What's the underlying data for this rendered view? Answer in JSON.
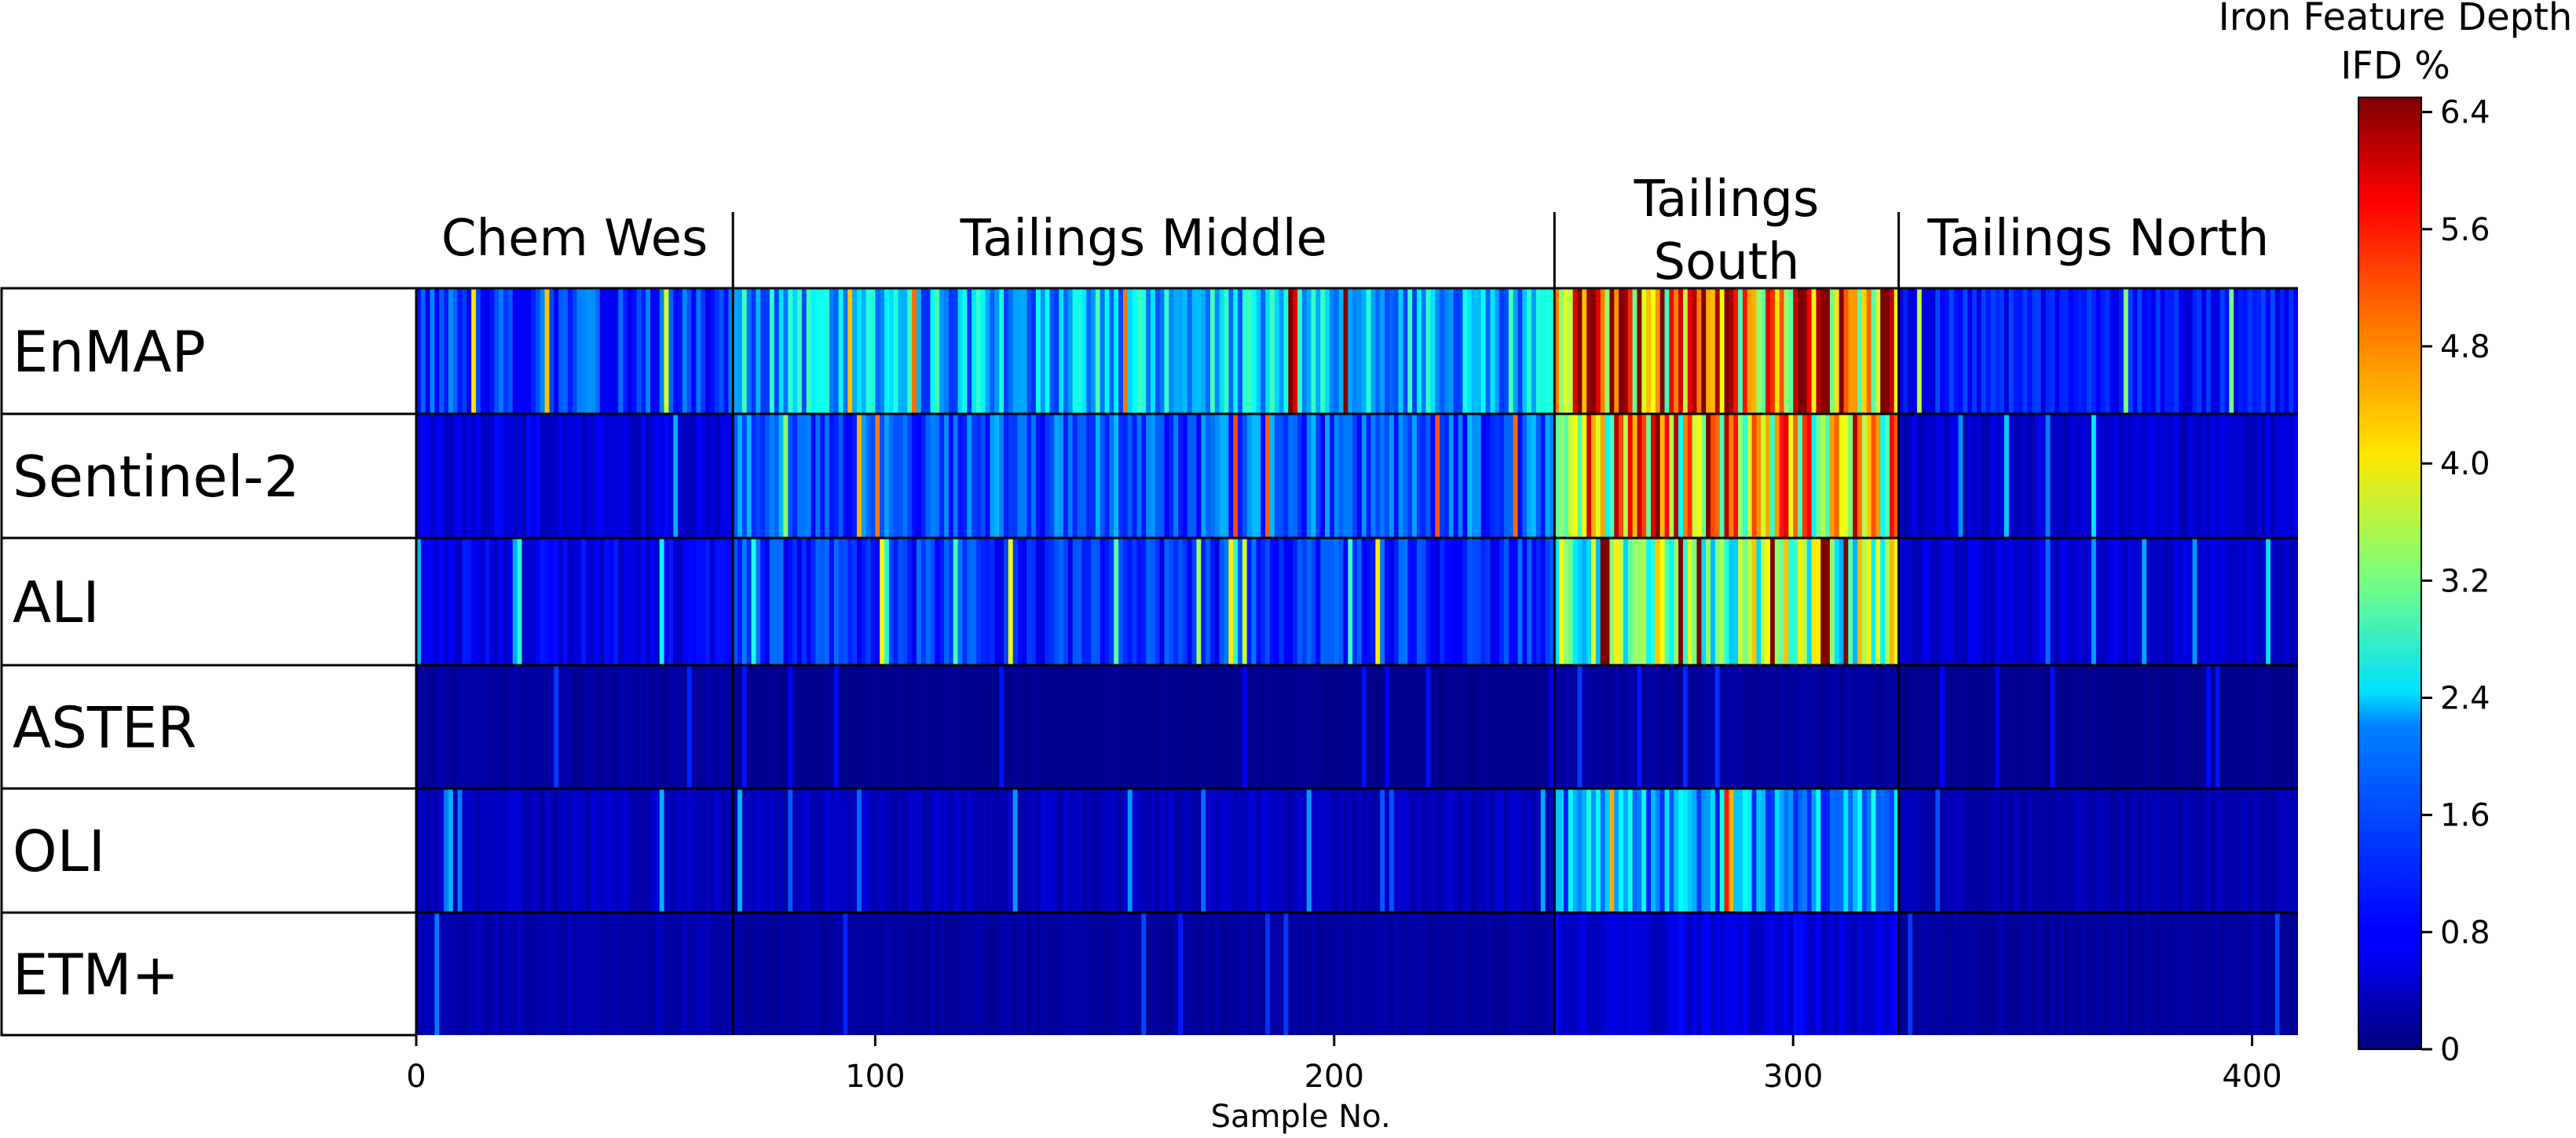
{
  "chart_data": {
    "type": "heatmap",
    "xlabel": "Sample No.",
    "x_range": [
      0,
      410
    ],
    "x_ticks": [
      0,
      100,
      200,
      300,
      400
    ],
    "rows": [
      "EnMAP",
      "Sentinel-2",
      "ALI",
      "ASTER",
      "OLI",
      "ETM+"
    ],
    "groups": [
      {
        "label": "Chem Wes",
        "start": 0,
        "end": 69
      },
      {
        "label": "Tailings Middle",
        "start": 69,
        "end": 248
      },
      {
        "label": "Tailings\nSouth",
        "start": 248,
        "end": 323
      },
      {
        "label": "Tailings North",
        "start": 323,
        "end": 416
      }
    ],
    "colorbar": {
      "title": "Iron Feature Depth\nIFD %",
      "min": 0,
      "max": 6.5,
      "ticks": [
        "0",
        "0.8",
        "1.6",
        "2.4",
        "3.2",
        "4.0",
        "4.8",
        "5.6",
        "6.4"
      ],
      "colormap": "jet"
    },
    "approx_mean_ifd_percent": {
      "EnMAP": {
        "Chem Wes": 1.2,
        "Tailings Middle": 2.0,
        "Tailings South": 5.2,
        "Tailings North": 0.9
      },
      "Sentinel-2": {
        "Chem Wes": 0.6,
        "Tailings Middle": 1.4,
        "Tailings South": 4.3,
        "Tailings North": 0.5
      },
      "ALI": {
        "Chem Wes": 0.7,
        "Tailings Middle": 1.1,
        "Tailings South": 3.2,
        "Tailings North": 0.5
      },
      "ASTER": {
        "Chem Wes": 0.2,
        "Tailings Middle": 0.1,
        "Tailings South": 0.2,
        "Tailings North": 0.1
      },
      "OLI": {
        "Chem Wes": 0.4,
        "Tailings Middle": 0.4,
        "Tailings South": 1.8,
        "Tailings North": 0.3
      },
      "ETM+": {
        "Chem Wes": 0.3,
        "Tailings Middle": 0.2,
        "Tailings South": 0.6,
        "Tailings North": 0.2
      }
    }
  }
}
